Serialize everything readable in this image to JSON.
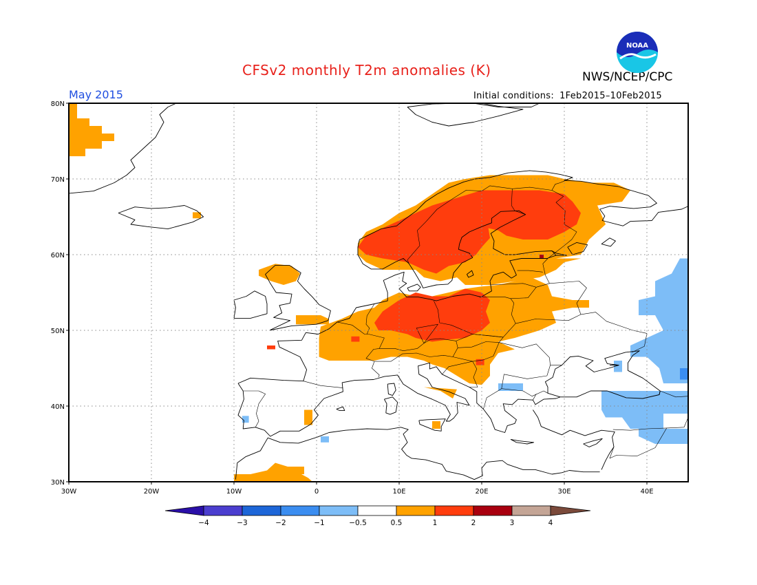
{
  "title": "CFSv2 monthly T2m anomalies (K)",
  "organization": "NWS/NCEP/CPC",
  "logo_text": "NOAA",
  "period": "May 2015",
  "initial_conditions_label": "Initial conditions:",
  "initial_conditions_value": "1Feb2015–10Feb2015",
  "map": {
    "lon_range": [
      -30,
      45
    ],
    "lat_range": [
      30,
      80
    ],
    "x_ticks": [
      "30W",
      "20W",
      "10W",
      "0",
      "10E",
      "20E",
      "30E",
      "40E"
    ],
    "y_ticks": [
      "30N",
      "40N",
      "50N",
      "60N",
      "70N",
      "80N"
    ],
    "grid": "dotted"
  },
  "colorbar": {
    "ticks": [
      "−4",
      "−3",
      "−2",
      "−1",
      "−0.5",
      "0.5",
      "1",
      "2",
      "3",
      "4"
    ],
    "colors": [
      "#2a0fa8",
      "#4b3ecf",
      "#1d66d8",
      "#3b8df0",
      "#7dbdf7",
      "#ffffff",
      "#ffa200",
      "#ff3d0d",
      "#a9000f",
      "#c4a596",
      "#7b4a3b"
    ]
  },
  "colors": {
    "warm_0_5_1": "#ffa200",
    "warm_1_2": "#ff3d0d",
    "warm_2_3": "#a9000f",
    "cool_m1_m0_5": "#7dbdf7",
    "cool_m2_m1": "#3b8df0"
  }
}
